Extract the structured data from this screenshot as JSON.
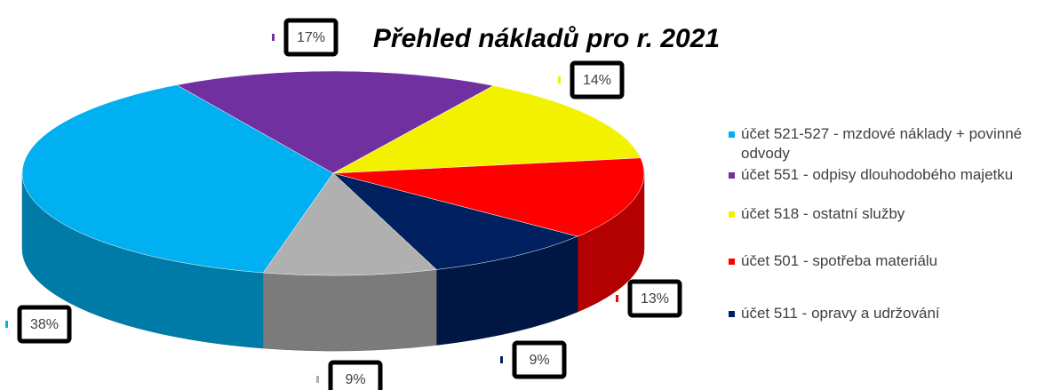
{
  "chart_data": {
    "type": "pie3d",
    "title": "Přehled nákladů pro r. 2021",
    "categories": [
      "účet 521-527 - mzdové náklady + povinné odvody",
      "účet 551 - odpisy dlouhodobého majetku",
      "účet 518 - ostatní služby",
      "účet 501 - spotřeba materiálu",
      "účet 511 - opravy a udržování",
      null
    ],
    "values": [
      38,
      17,
      14,
      13,
      9,
      9
    ],
    "value_labels": [
      "38%",
      "17%",
      "14%",
      "13%",
      "9%",
      "9%"
    ],
    "colors": [
      "#00b0f0",
      "#7030a0",
      "#f2f200",
      "#ff0000",
      "#002060",
      "#b0b0b0"
    ],
    "legend": "right"
  }
}
